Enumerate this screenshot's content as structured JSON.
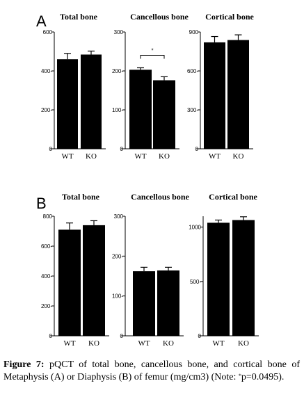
{
  "chart_data": [
    {
      "type": "bar",
      "panel_label": "A",
      "title": "Total bone",
      "categories": [
        "WT",
        "KO"
      ],
      "values": [
        460,
        484
      ],
      "errors": [
        30,
        18
      ],
      "ylim": [
        0,
        600
      ],
      "yticks": [
        0,
        200,
        400,
        600
      ],
      "ytick_labels": [
        "0",
        "200-",
        "400-",
        "600"
      ]
    },
    {
      "type": "bar",
      "panel_label": "",
      "title": "Cancellous bone",
      "categories": [
        "WT",
        "KO"
      ],
      "values": [
        203,
        176
      ],
      "errors": [
        5,
        9
      ],
      "ylim": [
        0,
        300
      ],
      "yticks": [
        0,
        100,
        200,
        300
      ],
      "ytick_labels": [
        "0",
        "100-",
        "200-",
        "300"
      ],
      "significance": {
        "label": "*",
        "pair": [
          0,
          1
        ]
      }
    },
    {
      "type": "bar",
      "panel_label": "",
      "title": "Cortical bone",
      "categories": [
        "WT",
        "KO"
      ],
      "values": [
        820,
        838
      ],
      "errors": [
        45,
        40
      ],
      "ylim": [
        0,
        900
      ],
      "yticks": [
        0,
        300,
        600,
        900
      ],
      "ytick_labels": [
        "0",
        "300-",
        "600-",
        "900"
      ]
    },
    {
      "type": "bar",
      "panel_label": "B",
      "title": "Total bone",
      "categories": [
        "WT",
        "KO"
      ],
      "values": [
        710,
        740
      ],
      "errors": [
        45,
        30
      ],
      "ylim": [
        0,
        800
      ],
      "yticks": [
        0,
        200,
        400,
        600,
        800
      ],
      "ytick_labels": [
        "0",
        "200-",
        "400-",
        "600-",
        "800"
      ]
    },
    {
      "type": "bar",
      "panel_label": "",
      "title": "Cancellous bone",
      "categories": [
        "WT",
        "KO"
      ],
      "values": [
        162,
        164
      ],
      "errors": [
        10,
        8
      ],
      "ylim": [
        0,
        300
      ],
      "yticks": [
        0,
        100,
        200,
        300
      ],
      "ytick_labels": [
        "0",
        "100-",
        "200-",
        "300"
      ]
    },
    {
      "type": "bar",
      "panel_label": "",
      "title": "Cortical bone",
      "categories": [
        "WT",
        "KO"
      ],
      "values": [
        1040,
        1065
      ],
      "errors": [
        25,
        30
      ],
      "ylim": [
        0,
        1100
      ],
      "yticks": [
        0,
        500,
        1000
      ],
      "ytick_labels": [
        "0",
        "500-",
        "1000"
      ]
    }
  ],
  "caption": {
    "label": "Figure 7:",
    "text_before_sup": " pQCT of total bone, cancellous bone, and cortical bone of Metaphysis (A) or Diaphysis (B) of femur (mg/cm3) (Note: ",
    "sup": "*",
    "text_after_sup": "p=0.0495)."
  },
  "colors": {
    "bar": "#000000",
    "axis": "#000000",
    "background": "#ffffff"
  }
}
